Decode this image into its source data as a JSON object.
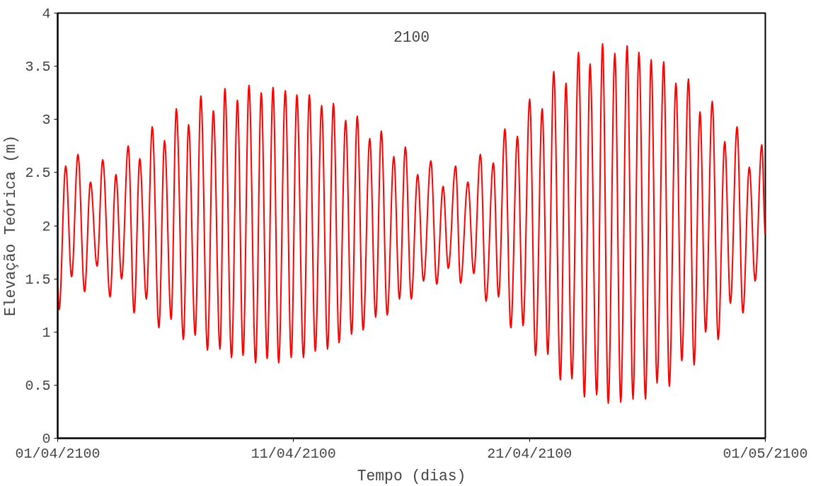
{
  "chart_data": {
    "type": "line",
    "title": "2100",
    "xlabel": "Tempo (dias)",
    "ylabel": "Elevação Teórica (m)",
    "xlim": [
      "2100-04-01",
      "2100-05-01"
    ],
    "xticks": [
      {
        "value": "2100-04-01",
        "label": "01/04/2100"
      },
      {
        "value": "2100-04-11",
        "label": "11/04/2100"
      },
      {
        "value": "2100-04-21",
        "label": "21/04/2100"
      },
      {
        "value": "2100-05-01",
        "label": "01/05/2100"
      }
    ],
    "ylim": [
      0,
      4
    ],
    "yticks": [
      0,
      0.5,
      1,
      1.5,
      2,
      2.5,
      3,
      3.5,
      4
    ],
    "grid": false,
    "marker": "none",
    "line_style": "solid",
    "series": [
      {
        "color": "#ff0000",
        "x": [
          "2100-04-01T00:00",
          "2100-04-01T01:26",
          "2100-04-01T08:10",
          "2100-04-01T14:10",
          "2100-04-01T20:38",
          "2100-04-02T03:22",
          "2100-04-02T09:22",
          "2100-04-02T16:05",
          "2100-04-02T21:50",
          "2100-04-03T05:17",
          "2100-04-03T11:17",
          "2100-04-03T17:02",
          "2100-04-03T23:46",
          "2100-04-04T05:46",
          "2100-04-04T11:31",
          "2100-04-04T18:14",
          "2100-04-05T00:14",
          "2100-04-05T06:58",
          "2100-04-05T12:43",
          "2100-04-05T19:26",
          "2100-04-06T00:43",
          "2100-04-06T07:55",
          "2100-04-06T13:12",
          "2100-04-06T19:55",
          "2100-04-07T01:41",
          "2100-04-07T08:24",
          "2100-04-07T14:24",
          "2100-04-07T21:07",
          "2100-04-08T02:10",
          "2100-04-08T08:53",
          "2100-04-08T14:53",
          "2100-04-08T20:38",
          "2100-04-09T02:38",
          "2100-04-09T09:22",
          "2100-04-09T15:07",
          "2100-04-09T21:07",
          "2100-04-10T03:07",
          "2100-04-10T08:53",
          "2100-04-10T15:36",
          "2100-04-10T21:36",
          "2100-04-11T03:22",
          "2100-04-11T10:05",
          "2100-04-11T16:05",
          "2100-04-11T22:05",
          "2100-04-12T04:34",
          "2100-04-12T10:34",
          "2100-04-12T16:34",
          "2100-04-12T22:19",
          "2100-04-13T05:02",
          "2100-04-13T11:02",
          "2100-04-13T16:48",
          "2100-04-13T22:48",
          "2100-04-14T05:31",
          "2100-04-14T11:31",
          "2100-04-14T17:17",
          "2100-04-14T23:17",
          "2100-04-15T06:00",
          "2100-04-15T11:46",
          "2100-04-15T17:46",
          "2100-04-15T23:46",
          "2100-04-16T06:14",
          "2100-04-16T12:14",
          "2100-04-16T19:41",
          "2100-04-17T01:41",
          "2100-04-17T08:10",
          "2100-04-17T13:26",
          "2100-04-17T20:53",
          "2100-04-18T01:55",
          "2100-04-18T09:22",
          "2100-04-18T15:22",
          "2100-04-18T22:05",
          "2100-04-19T03:50",
          "2100-04-19T11:17",
          "2100-04-19T16:34",
          "2100-04-19T23:02",
          "2100-04-20T05:02",
          "2100-04-20T11:46",
          "2100-04-20T17:31",
          "2100-04-21T00:14",
          "2100-04-21T06:14",
          "2100-04-21T12:58",
          "2100-04-21T18:43",
          "2100-04-22T00:43",
          "2100-04-22T07:26",
          "2100-04-22T13:12",
          "2100-04-22T19:12",
          "2100-04-23T01:55",
          "2100-04-23T07:55",
          "2100-04-23T13:41",
          "2100-04-23T20:24",
          "2100-04-24T02:24",
          "2100-04-24T08:10",
          "2100-04-24T14:53",
          "2100-04-24T20:53",
          "2100-04-25T03:22",
          "2100-04-25T09:22",
          "2100-04-25T15:22",
          "2100-04-25T22:05",
          "2100-04-26T03:50",
          "2100-04-26T09:50",
          "2100-04-26T16:34",
          "2100-04-26T22:19",
          "2100-04-27T05:02",
          "2100-04-27T11:02",
          "2100-04-27T17:46",
          "2100-04-27T23:31",
          "2100-04-28T05:31",
          "2100-04-28T11:17",
          "2100-04-28T18:00",
          "2100-04-29T00:00",
          "2100-04-29T06:43",
          "2100-04-29T12:29",
          "2100-04-29T19:12",
          "2100-04-30T01:12",
          "2100-04-30T07:41",
          "2100-04-30T13:41",
          "2100-04-30T20:24",
          "2100-05-01T00:00"
        ],
        "values": [
          1.42,
          1.21,
          2.56,
          1.52,
          2.67,
          1.38,
          2.41,
          1.62,
          2.62,
          1.33,
          2.48,
          1.5,
          2.75,
          1.18,
          2.63,
          1.31,
          2.93,
          1.04,
          2.8,
          1.12,
          3.1,
          0.93,
          2.95,
          0.97,
          3.22,
          0.83,
          3.08,
          0.84,
          3.29,
          0.76,
          3.18,
          0.78,
          3.32,
          0.71,
          3.25,
          0.75,
          3.3,
          0.71,
          3.27,
          0.76,
          3.23,
          0.76,
          3.23,
          0.82,
          3.13,
          0.84,
          3.15,
          0.9,
          2.99,
          0.98,
          3.03,
          1.02,
          2.82,
          1.14,
          2.89,
          1.16,
          2.65,
          1.31,
          2.74,
          1.31,
          2.48,
          1.48,
          2.61,
          1.45,
          2.37,
          1.6,
          2.56,
          1.46,
          2.41,
          1.55,
          2.67,
          1.29,
          2.59,
          1.33,
          2.91,
          1.04,
          2.84,
          1.06,
          3.19,
          0.78,
          3.1,
          0.79,
          3.45,
          0.55,
          3.34,
          0.56,
          3.63,
          0.39,
          3.52,
          0.41,
          3.71,
          0.33,
          3.62,
          0.34,
          3.69,
          0.37,
          3.63,
          0.37,
          3.56,
          0.52,
          3.54,
          0.49,
          3.34,
          0.73,
          3.38,
          0.69,
          3.07,
          1.0,
          3.17,
          0.93,
          2.79,
          1.27,
          2.93,
          1.18,
          2.55,
          1.48,
          2.76,
          1.92
        ]
      }
    ]
  }
}
